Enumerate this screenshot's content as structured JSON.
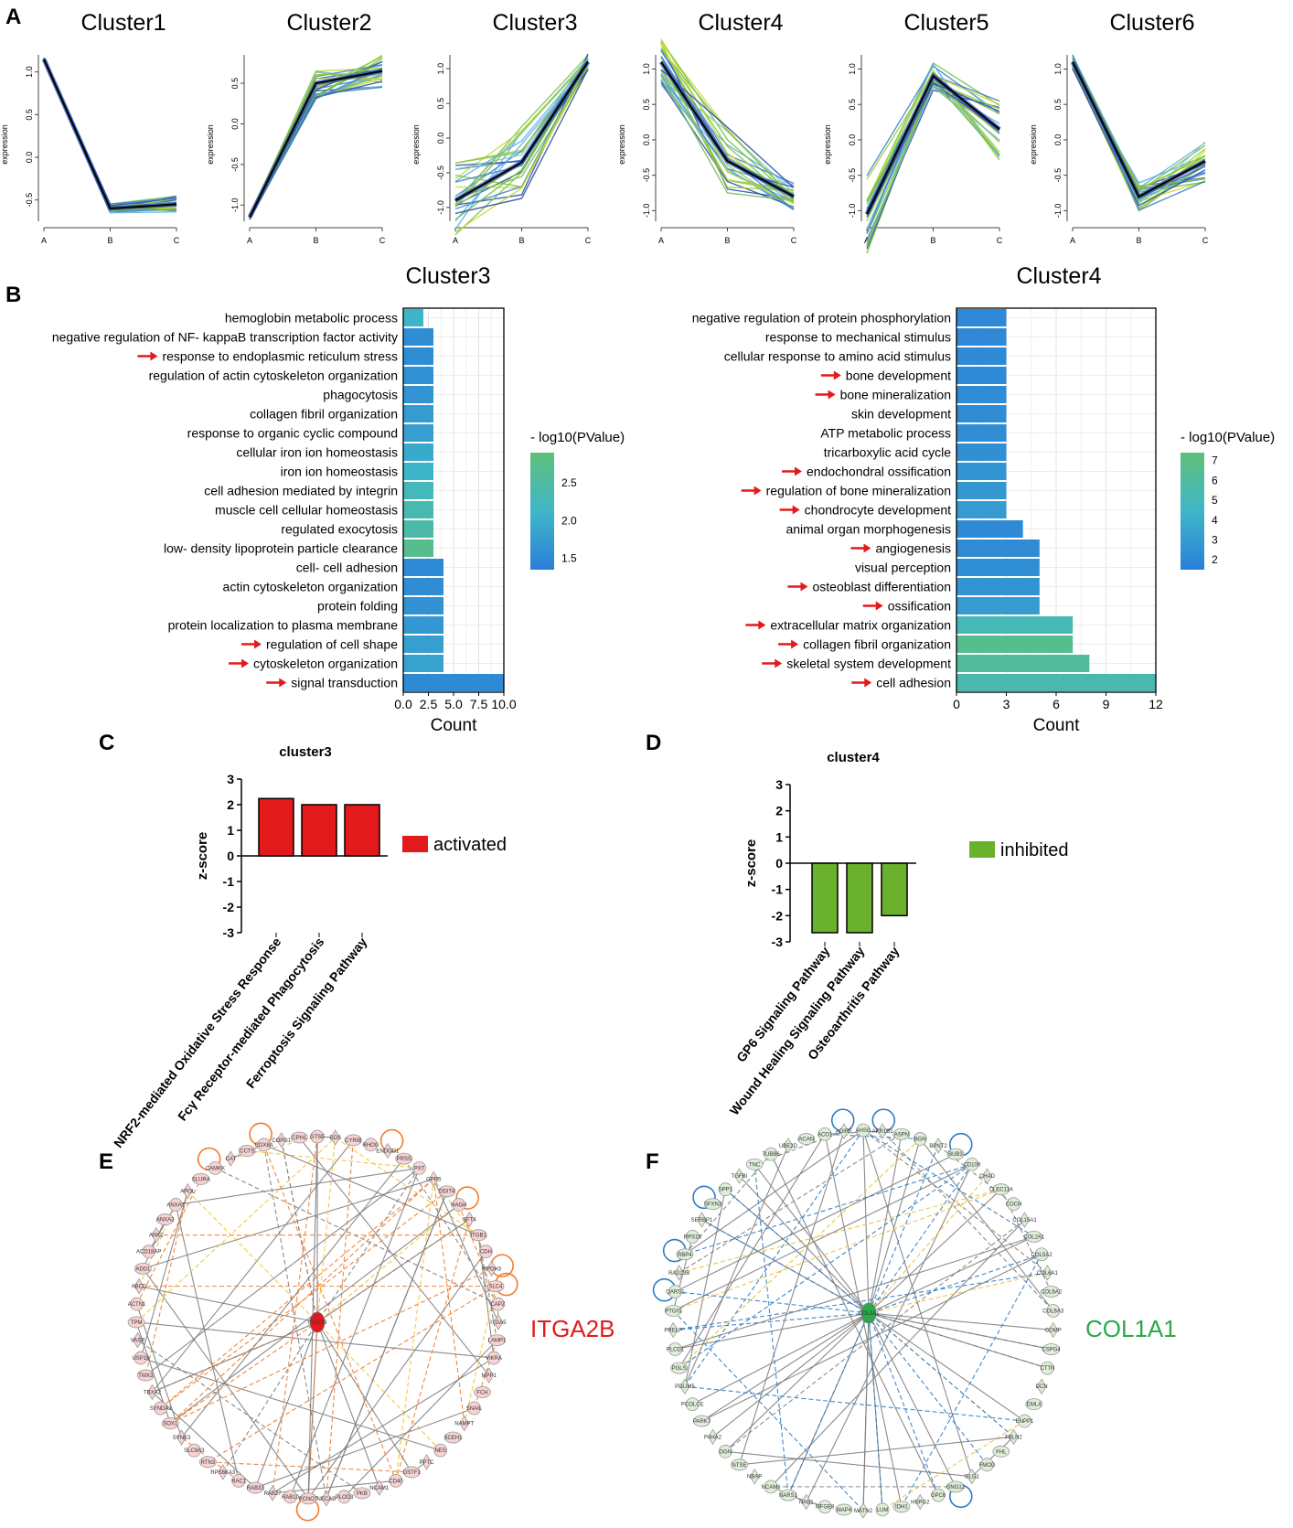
{
  "panels": {
    "A": "A",
    "B": "B",
    "C": "C",
    "D": "D",
    "E": "E",
    "F": "F"
  },
  "chart_data": [
    {
      "id": "clusters",
      "type": "line",
      "ylabel": "expression",
      "x": [
        "A",
        "B",
        "C"
      ],
      "clusters": [
        {
          "title": "Cluster1",
          "center": [
            1.15,
            -0.6,
            -0.55
          ],
          "yticks": [
            1.0,
            0.5,
            0.0,
            -0.5
          ],
          "ylim": [
            -0.75,
            1.2
          ],
          "spread": [
            0.02,
            0.06,
            0.1
          ]
        },
        {
          "title": "Cluster2",
          "center": [
            -1.15,
            0.5,
            0.65
          ],
          "yticks": [
            0.5,
            0.0,
            -0.5,
            -1.0
          ],
          "ylim": [
            -1.2,
            0.85
          ],
          "spread": [
            0.03,
            0.2,
            0.2
          ]
        },
        {
          "title": "Cluster3",
          "center": [
            -0.9,
            -0.35,
            1.1
          ],
          "yticks": [
            1.0,
            0.5,
            0.0,
            -0.5,
            -1.0
          ],
          "ylim": [
            -1.2,
            1.2
          ],
          "spread": [
            0.55,
            0.55,
            0.12
          ]
        },
        {
          "title": "Cluster4",
          "center": [
            1.1,
            -0.3,
            -0.8
          ],
          "yticks": [
            1.0,
            0.5,
            0.0,
            -0.5,
            -1.0
          ],
          "ylim": [
            -1.15,
            1.2
          ],
          "spread": [
            0.35,
            0.5,
            0.2
          ]
        },
        {
          "title": "Cluster5",
          "center": [
            -1.05,
            0.9,
            0.15
          ],
          "yticks": [
            1.0,
            0.5,
            0.0,
            -0.5,
            -1.0
          ],
          "ylim": [
            -1.15,
            1.2
          ],
          "spread": [
            0.55,
            0.2,
            0.45
          ]
        },
        {
          "title": "Cluster6",
          "center": [
            1.1,
            -0.8,
            -0.3
          ],
          "yticks": [
            1.0,
            0.5,
            0.0,
            -0.5,
            -1.0
          ],
          "ylim": [
            -1.15,
            1.2
          ],
          "spread": [
            0.1,
            0.2,
            0.3
          ]
        }
      ]
    },
    {
      "id": "go-cluster3",
      "type": "bar",
      "orientation": "horizontal",
      "title": "Cluster3",
      "xlabel": "Count",
      "xlim": [
        0,
        10
      ],
      "xticks": [
        "0.0",
        "2.5",
        "5.0",
        "7.5",
        "10.0"
      ],
      "legend_title": "- log10(PValue)",
      "legend_ticks": [
        "2.5",
        "2.0",
        "1.5"
      ],
      "color_range": [
        1.35,
        2.9
      ],
      "bars": [
        {
          "term": "hemoglobin metabolic process",
          "count": 2,
          "logp": 2.1,
          "arrow": false
        },
        {
          "term": "negative regulation of NF- kappaB transcription factor activity",
          "count": 3,
          "logp": 1.55,
          "arrow": false
        },
        {
          "term": "response to endoplasmic reticulum stress",
          "count": 3,
          "logp": 1.55,
          "arrow": true
        },
        {
          "term": "regulation of actin cytoskeleton organization",
          "count": 3,
          "logp": 1.6,
          "arrow": false
        },
        {
          "term": "phagocytosis",
          "count": 3,
          "logp": 1.65,
          "arrow": false
        },
        {
          "term": "collagen fibril organization",
          "count": 3,
          "logp": 1.75,
          "arrow": false
        },
        {
          "term": "response to organic cyclic compound",
          "count": 3,
          "logp": 1.8,
          "arrow": false
        },
        {
          "term": "cellular iron ion homeostasis",
          "count": 3,
          "logp": 1.95,
          "arrow": false
        },
        {
          "term": "iron ion homeostasis",
          "count": 3,
          "logp": 2.1,
          "arrow": false
        },
        {
          "term": "cell adhesion mediated by integrin",
          "count": 3,
          "logp": 2.25,
          "arrow": false
        },
        {
          "term": "muscle cell cellular homeostasis",
          "count": 3,
          "logp": 2.35,
          "arrow": false
        },
        {
          "term": "regulated exocytosis",
          "count": 3,
          "logp": 2.45,
          "arrow": false
        },
        {
          "term": "low- density lipoprotein particle clearance",
          "count": 3,
          "logp": 2.7,
          "arrow": false
        },
        {
          "term": "cell- cell adhesion",
          "count": 4,
          "logp": 1.5,
          "arrow": false
        },
        {
          "term": "actin cytoskeleton organization",
          "count": 4,
          "logp": 1.55,
          "arrow": false
        },
        {
          "term": "protein folding",
          "count": 4,
          "logp": 1.6,
          "arrow": false
        },
        {
          "term": "protein localization to plasma membrane",
          "count": 4,
          "logp": 1.7,
          "arrow": false
        },
        {
          "term": "regulation of cell shape",
          "count": 4,
          "logp": 1.8,
          "arrow": true
        },
        {
          "term": "cytoskeleton organization",
          "count": 4,
          "logp": 1.85,
          "arrow": true
        },
        {
          "term": "signal transduction",
          "count": 10,
          "logp": 1.5,
          "arrow": true
        }
      ]
    },
    {
      "id": "go-cluster4",
      "type": "bar",
      "orientation": "horizontal",
      "title": "Cluster4",
      "xlabel": "Count",
      "xlim": [
        0,
        12
      ],
      "xticks": [
        "0",
        "3",
        "6",
        "9",
        "12"
      ],
      "legend_title": "- log10(PValue)",
      "legend_ticks": [
        "7",
        "6",
        "5",
        "4",
        "3",
        "2"
      ],
      "color_range": [
        1.5,
        7.4
      ],
      "bars": [
        {
          "term": "negative regulation of protein phosphorylation",
          "count": 3,
          "logp": 2.0,
          "arrow": false
        },
        {
          "term": "response to mechanical stimulus",
          "count": 3,
          "logp": 2.0,
          "arrow": false
        },
        {
          "term": "cellular response to amino acid stimulus",
          "count": 3,
          "logp": 2.1,
          "arrow": false
        },
        {
          "term": "bone development",
          "count": 3,
          "logp": 2.1,
          "arrow": true
        },
        {
          "term": "bone mineralization",
          "count": 3,
          "logp": 2.2,
          "arrow": true
        },
        {
          "term": "skin development",
          "count": 3,
          "logp": 2.2,
          "arrow": false
        },
        {
          "term": "ATP metabolic process",
          "count": 3,
          "logp": 2.3,
          "arrow": false
        },
        {
          "term": "tricarboxylic acid cycle",
          "count": 3,
          "logp": 2.4,
          "arrow": false
        },
        {
          "term": "endochondral ossification",
          "count": 3,
          "logp": 2.6,
          "arrow": true
        },
        {
          "term": "regulation of bone mineralization",
          "count": 3,
          "logp": 2.8,
          "arrow": true
        },
        {
          "term": "chondrocyte development",
          "count": 3,
          "logp": 3.0,
          "arrow": true
        },
        {
          "term": "animal organ morphogenesis",
          "count": 4,
          "logp": 2.1,
          "arrow": false
        },
        {
          "term": "angiogenesis",
          "count": 5,
          "logp": 2.2,
          "arrow": true
        },
        {
          "term": "visual perception",
          "count": 5,
          "logp": 2.3,
          "arrow": false
        },
        {
          "term": "osteoblast differentiation",
          "count": 5,
          "logp": 2.6,
          "arrow": true
        },
        {
          "term": "ossification",
          "count": 5,
          "logp": 3.0,
          "arrow": true
        },
        {
          "term": "extracellular matrix organization",
          "count": 7,
          "logp": 5.2,
          "arrow": true
        },
        {
          "term": "collagen fibril organization",
          "count": 7,
          "logp": 6.6,
          "arrow": true
        },
        {
          "term": "skeletal system development",
          "count": 8,
          "logp": 6.2,
          "arrow": true
        },
        {
          "term": "cell adhesion",
          "count": 12,
          "logp": 5.4,
          "arrow": true
        }
      ]
    },
    {
      "id": "ipa-cluster3",
      "type": "bar",
      "title": "cluster3",
      "ylabel": "z-score",
      "ylim": [
        -3,
        3
      ],
      "yticks": [
        "3",
        "2",
        "1",
        "0",
        "-1",
        "-2",
        "-3"
      ],
      "categories": [
        "NRF2-mediated Oxidative Stress Response",
        "Fcγ Receptor-mediated Phagocytosis",
        "Ferroptosis Signaling Pathway"
      ],
      "values": [
        2.24,
        2.0,
        2.0
      ],
      "color": "#e31a1c",
      "legend": "activated"
    },
    {
      "id": "ipa-cluster4",
      "type": "bar",
      "title": "cluster4",
      "ylabel": "z-score",
      "ylim": [
        -3,
        3
      ],
      "yticks": [
        "3",
        "2",
        "1",
        "0",
        "-1",
        "-2",
        "-3"
      ],
      "categories": [
        "GP6 Signaling Pathway",
        "Wound Healing Signaling Pathway",
        "Osteoarthritis Pathway"
      ],
      "values": [
        -2.65,
        -2.65,
        -2.0
      ],
      "color": "#6ab22e",
      "legend": "inhibited"
    },
    {
      "id": "network-E",
      "type": "network",
      "hub": "ITGA2B",
      "hub_color": "#e31a1c",
      "edge_colors": [
        "#f07c2c",
        "#f2c430",
        "#7f7f7f"
      ],
      "node_fill": "#f7d3d3",
      "node_labels": [
        "GTSE",
        "DDS",
        "CYRIB",
        "RHOG",
        "ENDOD1",
        "PRSS",
        "PXT",
        "GPR5",
        "DDIT4",
        "HAGH",
        "SFT4",
        "ITGB1",
        "CDH",
        "MPDH3",
        "SLC4",
        "CAPZ",
        "ITGA5",
        "LAMP1",
        "VIKRA",
        "MPP1",
        "FCH",
        "SNAIL",
        "NAMPT",
        "SCEH1",
        "NES",
        "PPTC",
        "DSTF1",
        "CD40",
        "NCAM1",
        "PKB",
        "PLOD3",
        "NECAB",
        "PCNOT",
        "RAB10",
        "RAB27",
        "RAB33",
        "RAC1",
        "RPS6KA3",
        "RTN3",
        "SLC9A3",
        "SYNE3",
        "SOX1",
        "SYNDAJ",
        "TBXA2",
        "TMX3",
        "USP16",
        "VASP",
        "TPM",
        "ACTN1",
        "ABCD",
        "ADD1",
        "ACD18AP",
        "ANK2",
        "ANXA3",
        "ANXA7",
        "APOL",
        "SLURA",
        "CAMKK",
        "CAT",
        "CCT5",
        "COX8A",
        "COPG1",
        "CPH1"
      ]
    },
    {
      "id": "network-F",
      "type": "network",
      "hub": "COL1A1",
      "hub_color": "#2ba84a",
      "edge_colors": [
        "#2e7cc4",
        "#e8c23a",
        "#7f7f7f"
      ],
      "node_fill": "#dfeed8",
      "node_labels": [
        "AHSG",
        "AKR1B1",
        "ASPN",
        "BGN",
        "BPNT2",
        "BUB3",
        "CD109",
        "CHAD",
        "CLEC11A",
        "COCH",
        "COL15A1",
        "COL2A1",
        "COL5A2",
        "COL6A1",
        "COL6A2",
        "COL6A3",
        "COMP",
        "CSPG4",
        "CTTN",
        "DCN",
        "EML4",
        "ENPP1",
        "FBLN2",
        "FHL",
        "FMOD",
        "GLG1",
        "GNG12",
        "GPC6",
        "HSPG2",
        "IDH1",
        "LUM",
        "MATN2",
        "MAP4",
        "MFGE8",
        "NAB1",
        "NARS1",
        "NCAM1",
        "NBAP",
        "NTSE",
        "OGN",
        "P4HA2",
        "PARK7",
        "PCOLCE",
        "PDLIM5",
        "PGLS",
        "PLCD1",
        "PRELP",
        "PTGIS",
        "QARS1",
        "RAD23B",
        "RBP4",
        "RPS15",
        "SERBP1",
        "SFXN3",
        "SPP1",
        "TGFBI",
        "TNC",
        "TUBB6",
        "UBE2D",
        "ACAN",
        "ACO1",
        "ADIRF"
      ]
    }
  ],
  "genes": {
    "E": "ITGA2B",
    "F": "COL1A1"
  }
}
